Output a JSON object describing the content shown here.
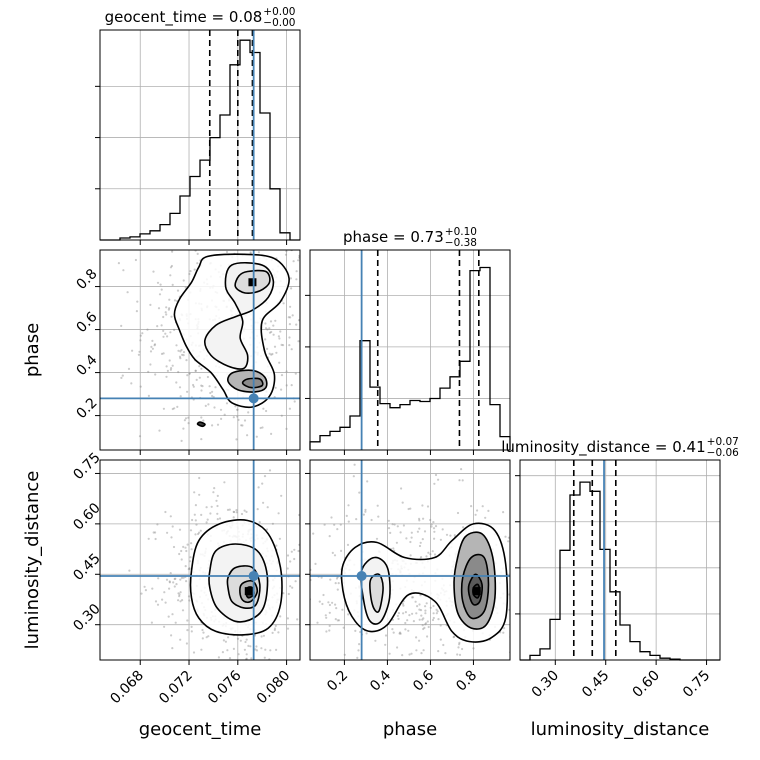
{
  "chart_data": {
    "type": "corner",
    "parameters": [
      "geocent_time",
      "phase",
      "luminosity_distance"
    ],
    "axis_labels": {
      "geocent_time": "geocent_time",
      "phase": "phase",
      "luminosity_distance": "luminosity_distance"
    },
    "ranges": {
      "geocent_time": [
        0.0647,
        0.0811
      ],
      "phase": [
        0.04,
        0.97
      ],
      "luminosity_distance": [
        0.195,
        0.79
      ]
    },
    "ticks": {
      "geocent_time": {
        "values": [
          0.068,
          0.072,
          0.076,
          0.08
        ],
        "labels": [
          "0.068",
          "0.072",
          "0.076",
          "0.080"
        ]
      },
      "phase": {
        "values": [
          0.2,
          0.4,
          0.6,
          0.8
        ],
        "labels": [
          "0.2",
          "0.4",
          "0.6",
          "0.8"
        ]
      },
      "luminosity_distance": {
        "values": [
          0.3,
          0.45,
          0.6,
          0.75
        ],
        "labels": [
          "0.30",
          "0.45",
          "0.60",
          "0.75"
        ]
      }
    },
    "titles": {
      "geocent_time": {
        "main": "geocent_time = 0.08",
        "plus": "+0.00",
        "minus": "−0.00"
      },
      "phase": {
        "main": "phase = 0.73",
        "plus": "+0.10",
        "minus": "−0.38"
      },
      "luminosity_distance": {
        "main": "luminosity_distance = 0.41",
        "plus": "+0.07",
        "minus": "−0.06"
      }
    },
    "truths": {
      "geocent_time": 0.0773,
      "phase": 0.28,
      "luminosity_distance": 0.445
    },
    "quantiles": {
      "geocent_time": [
        0.0737,
        0.076,
        0.0772
      ],
      "phase": [
        0.355,
        0.735,
        0.825
      ],
      "luminosity_distance": [
        0.355,
        0.41,
        0.48
      ]
    },
    "histograms": {
      "geocent_time": [
        0,
        0,
        0.2,
        0.3,
        0.6,
        0.9,
        1.5,
        2.6,
        4.3,
        6.2,
        7.8,
        10.0,
        12.2,
        17.1,
        19.5,
        18.3,
        12.4,
        5.0,
        0.7,
        0
      ],
      "phase": [
        0.8,
        1.4,
        1.8,
        2.2,
        3.3,
        10.6,
        6.1,
        4.5,
        4.1,
        4.4,
        4.8,
        4.7,
        5.0,
        6.0,
        7.1,
        8.6,
        17.4,
        17.7,
        4.4,
        1.3
      ],
      "luminosity_distance": [
        0,
        0.5,
        1.2,
        4.4,
        11.9,
        17.9,
        19.3,
        18.3,
        12.0,
        7.4,
        3.8,
        2.0,
        0.9,
        0.5,
        0.2,
        0.1,
        0,
        0,
        0,
        0
      ]
    },
    "hist_ylim": {
      "geocent_time": [
        0,
        20.5
      ],
      "phase": [
        0,
        19.4
      ],
      "luminosity_distance": [
        0,
        21.7
      ]
    },
    "hist_yticks": {
      "geocent_time": [
        5,
        10,
        15
      ],
      "phase": [
        5,
        10,
        15
      ],
      "luminosity_distance": [
        5,
        10,
        15,
        20
      ]
    },
    "contours": {
      "phase_vs_geocent_time": [
        [
          [
            0.0735,
            0.94
          ],
          [
            0.0765,
            0.95
          ],
          [
            0.079,
            0.93
          ],
          [
            0.0802,
            0.84
          ],
          [
            0.0795,
            0.73
          ],
          [
            0.078,
            0.64
          ],
          [
            0.0782,
            0.5
          ],
          [
            0.079,
            0.39
          ],
          [
            0.0786,
            0.29
          ],
          [
            0.0772,
            0.24
          ],
          [
            0.0755,
            0.26
          ],
          [
            0.0748,
            0.32
          ],
          [
            0.0738,
            0.4
          ],
          [
            0.0725,
            0.46
          ],
          [
            0.0718,
            0.52
          ],
          [
            0.0712,
            0.6
          ],
          [
            0.0708,
            0.67
          ],
          [
            0.0712,
            0.74
          ],
          [
            0.0722,
            0.82
          ],
          [
            0.0728,
            0.89
          ]
        ],
        [
          [
            0.0755,
            0.9
          ],
          [
            0.078,
            0.9
          ],
          [
            0.0789,
            0.83
          ],
          [
            0.0785,
            0.75
          ],
          [
            0.0772,
            0.69
          ],
          [
            0.0758,
            0.66
          ],
          [
            0.0742,
            0.62
          ],
          [
            0.0733,
            0.55
          ],
          [
            0.0738,
            0.48
          ],
          [
            0.0752,
            0.43
          ],
          [
            0.0765,
            0.42
          ],
          [
            0.0768,
            0.48
          ],
          [
            0.0762,
            0.56
          ],
          [
            0.0764,
            0.64
          ],
          [
            0.0758,
            0.72
          ],
          [
            0.075,
            0.8
          ]
        ],
        [
          [
            0.0768,
            0.87
          ],
          [
            0.0783,
            0.87
          ],
          [
            0.0786,
            0.82
          ],
          [
            0.0778,
            0.78
          ],
          [
            0.0766,
            0.77
          ],
          [
            0.0758,
            0.8
          ],
          [
            0.0761,
            0.85
          ]
        ],
        [
          [
            0.0756,
            0.4
          ],
          [
            0.0772,
            0.41
          ],
          [
            0.0782,
            0.38
          ],
          [
            0.0783,
            0.33
          ],
          [
            0.0774,
            0.31
          ],
          [
            0.076,
            0.32
          ],
          [
            0.0752,
            0.36
          ]
        ],
        [
          [
            0.0768,
            0.37
          ],
          [
            0.0778,
            0.37
          ],
          [
            0.078,
            0.34
          ],
          [
            0.0771,
            0.33
          ],
          [
            0.0764,
            0.35
          ]
        ],
        [
          [
            0.0729,
            0.17
          ],
          [
            0.0733,
            0.16
          ],
          [
            0.0731,
            0.15
          ],
          [
            0.0727,
            0.16
          ]
        ]
      ],
      "luminosity_distance_vs_geocent_time": [
        [
          [
            0.0722,
            0.46
          ],
          [
            0.0728,
            0.55
          ],
          [
            0.0745,
            0.6
          ],
          [
            0.0768,
            0.61
          ],
          [
            0.0785,
            0.57
          ],
          [
            0.0795,
            0.47
          ],
          [
            0.0795,
            0.36
          ],
          [
            0.0785,
            0.29
          ],
          [
            0.0765,
            0.27
          ],
          [
            0.0742,
            0.28
          ],
          [
            0.0728,
            0.32
          ],
          [
            0.0722,
            0.38
          ]
        ],
        [
          [
            0.0737,
            0.46
          ],
          [
            0.0742,
            0.52
          ],
          [
            0.0758,
            0.54
          ],
          [
            0.0776,
            0.52
          ],
          [
            0.0784,
            0.45
          ],
          [
            0.0782,
            0.36
          ],
          [
            0.0773,
            0.32
          ],
          [
            0.0758,
            0.31
          ],
          [
            0.0743,
            0.35
          ],
          [
            0.0737,
            0.41
          ]
        ],
        [
          [
            0.0752,
            0.44
          ],
          [
            0.0758,
            0.47
          ],
          [
            0.0772,
            0.47
          ],
          [
            0.0778,
            0.42
          ],
          [
            0.0775,
            0.36
          ],
          [
            0.0765,
            0.35
          ],
          [
            0.0755,
            0.37
          ],
          [
            0.0752,
            0.41
          ]
        ],
        [
          [
            0.0763,
            0.42
          ],
          [
            0.0772,
            0.43
          ],
          [
            0.0776,
            0.4
          ],
          [
            0.0771,
            0.37
          ],
          [
            0.0765,
            0.37
          ],
          [
            0.0762,
            0.39
          ]
        ],
        [
          [
            0.0768,
            0.41
          ],
          [
            0.0772,
            0.41
          ],
          [
            0.0773,
            0.39
          ],
          [
            0.0769,
            0.38
          ],
          [
            0.0767,
            0.39
          ]
        ]
      ],
      "luminosity_distance_vs_phase": [
        [
          [
            0.19,
            0.47
          ],
          [
            0.25,
            0.53
          ],
          [
            0.35,
            0.545
          ],
          [
            0.48,
            0.5
          ],
          [
            0.62,
            0.5
          ],
          [
            0.7,
            0.55
          ],
          [
            0.8,
            0.6
          ],
          [
            0.9,
            0.58
          ],
          [
            0.95,
            0.48
          ],
          [
            0.95,
            0.32
          ],
          [
            0.88,
            0.26
          ],
          [
            0.78,
            0.25
          ],
          [
            0.7,
            0.28
          ],
          [
            0.62,
            0.37
          ],
          [
            0.5,
            0.39
          ],
          [
            0.4,
            0.3
          ],
          [
            0.32,
            0.28
          ],
          [
            0.25,
            0.31
          ],
          [
            0.2,
            0.38
          ]
        ],
        [
          [
            0.28,
            0.46
          ],
          [
            0.34,
            0.5
          ],
          [
            0.4,
            0.47
          ],
          [
            0.41,
            0.38
          ],
          [
            0.37,
            0.31
          ],
          [
            0.32,
            0.31
          ],
          [
            0.29,
            0.37
          ]
        ],
        [
          [
            0.32,
            0.43
          ],
          [
            0.36,
            0.45
          ],
          [
            0.38,
            0.41
          ],
          [
            0.36,
            0.34
          ],
          [
            0.33,
            0.36
          ]
        ],
        [
          [
            0.72,
            0.48
          ],
          [
            0.76,
            0.56
          ],
          [
            0.84,
            0.57
          ],
          [
            0.89,
            0.5
          ],
          [
            0.9,
            0.38
          ],
          [
            0.86,
            0.3
          ],
          [
            0.79,
            0.29
          ],
          [
            0.73,
            0.33
          ],
          [
            0.71,
            0.41
          ]
        ],
        [
          [
            0.75,
            0.44
          ],
          [
            0.79,
            0.5
          ],
          [
            0.85,
            0.5
          ],
          [
            0.87,
            0.42
          ],
          [
            0.85,
            0.34
          ],
          [
            0.79,
            0.32
          ],
          [
            0.75,
            0.37
          ]
        ],
        [
          [
            0.78,
            0.42
          ],
          [
            0.81,
            0.45
          ],
          [
            0.84,
            0.42
          ],
          [
            0.83,
            0.37
          ],
          [
            0.8,
            0.36
          ],
          [
            0.78,
            0.39
          ]
        ],
        [
          [
            0.8,
            0.41
          ],
          [
            0.82,
            0.42
          ],
          [
            0.83,
            0.4
          ],
          [
            0.82,
            0.38
          ],
          [
            0.8,
            0.39
          ]
        ]
      ]
    },
    "peaks": {
      "phase_vs_geocent_time": [
        [
          0.0772,
          0.82
        ]
      ],
      "luminosity_distance_vs_geocent_time": [
        [
          0.0769,
          0.4
        ]
      ],
      "luminosity_distance_vs_phase": [
        [
          0.815,
          0.4
        ]
      ]
    },
    "colors": {
      "truth": "#4682b4",
      "hist": "#000000",
      "grid": "#b0b0b0",
      "points": "#8c8c8c",
      "fill": "#d9d9d9"
    },
    "grid": true
  }
}
